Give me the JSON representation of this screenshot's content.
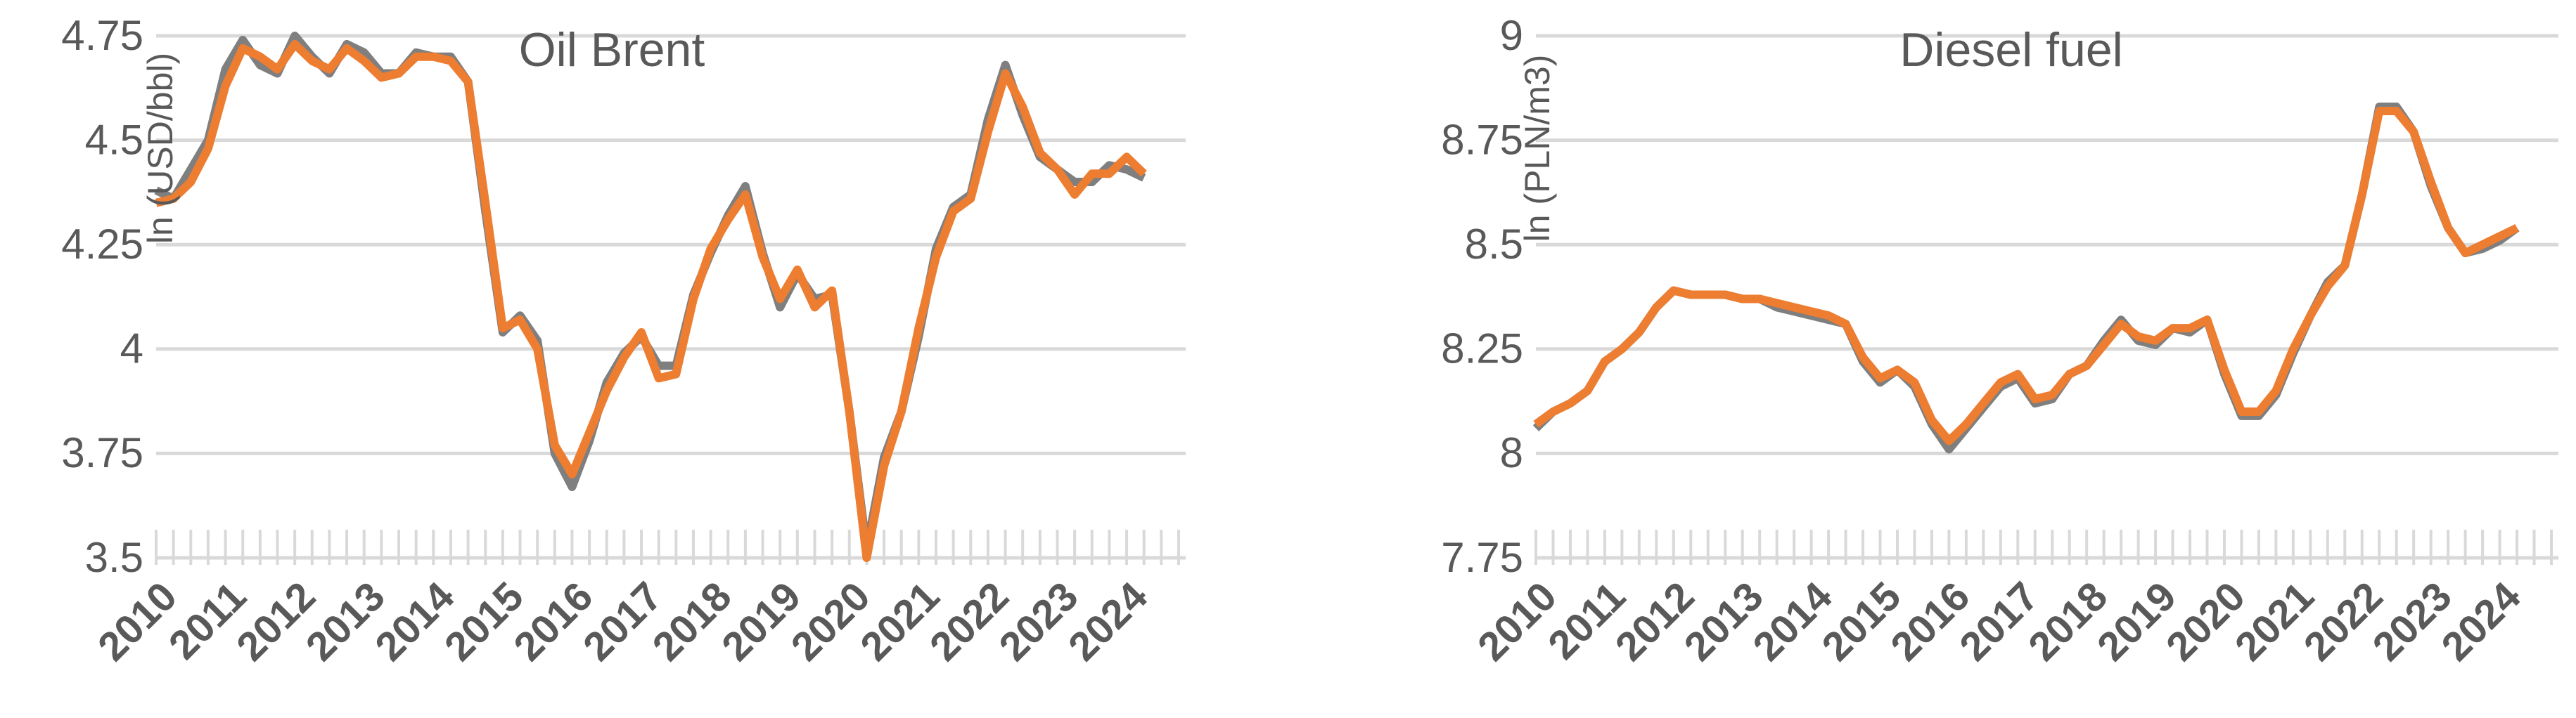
{
  "chart_data": [
    {
      "type": "line",
      "title": "Oil Brent",
      "y_label": "ln (USD/bbl)",
      "categories": [
        "2010",
        null,
        null,
        null,
        "2011",
        null,
        null,
        null,
        "2012",
        null,
        null,
        null,
        "2013",
        null,
        null,
        null,
        "2014",
        null,
        null,
        null,
        "2015",
        null,
        null,
        null,
        "2016",
        null,
        null,
        null,
        "2017",
        null,
        null,
        null,
        "2018",
        null,
        null,
        null,
        "2019",
        null,
        null,
        null,
        "2020",
        null,
        null,
        null,
        "2021",
        null,
        null,
        null,
        "2022",
        null,
        null,
        null,
        "2023",
        null,
        null,
        null,
        "2024",
        null,
        null,
        null
      ],
      "series": [
        {
          "color": "#7f7f7f",
          "values": [
            4.38,
            4.36,
            4.43,
            4.5,
            4.67,
            4.74,
            4.68,
            4.66,
            4.75,
            4.7,
            4.66,
            4.73,
            4.71,
            4.66,
            4.66,
            4.71,
            4.7,
            4.7,
            4.64,
            4.33,
            4.04,
            4.08,
            4.02,
            3.75,
            3.67,
            3.78,
            3.92,
            3.99,
            4.03,
            3.96,
            3.96,
            4.13,
            4.23,
            4.32,
            4.39,
            4.23,
            4.1,
            4.18,
            4.12,
            4.13,
            3.85,
            3.52,
            3.74,
            3.85,
            4.03,
            4.24,
            4.34,
            4.37,
            4.55,
            4.68,
            4.56,
            4.46,
            4.43,
            4.4,
            4.4,
            4.44,
            4.43,
            4.41,
            null,
            null
          ]
        },
        {
          "color": "#ed7d31",
          "values": [
            4.35,
            4.36,
            4.4,
            4.48,
            4.63,
            4.72,
            4.7,
            4.67,
            4.73,
            4.69,
            4.67,
            4.72,
            4.69,
            4.65,
            4.66,
            4.7,
            4.7,
            4.69,
            4.64,
            4.35,
            4.05,
            4.07,
            4.0,
            3.77,
            3.7,
            3.8,
            3.9,
            3.98,
            4.04,
            3.93,
            3.94,
            4.12,
            4.24,
            4.31,
            4.37,
            4.22,
            4.12,
            4.19,
            4.1,
            4.14,
            3.85,
            3.5,
            3.72,
            3.85,
            4.05,
            4.22,
            4.33,
            4.36,
            4.52,
            4.66,
            4.58,
            4.47,
            4.43,
            4.37,
            4.42,
            4.42,
            4.46,
            4.42,
            null,
            null
          ]
        }
      ],
      "ylim": [
        3.5,
        4.75
      ],
      "yticks": [
        3.5,
        3.75,
        4,
        4.25,
        4.5,
        4.75
      ],
      "grid": true
    },
    {
      "type": "line",
      "title": "Diesel fuel",
      "y_label": "ln (PLN/m3)",
      "categories": [
        "2010",
        null,
        null,
        null,
        "2011",
        null,
        null,
        null,
        "2012",
        null,
        null,
        null,
        "2013",
        null,
        null,
        null,
        "2014",
        null,
        null,
        null,
        "2015",
        null,
        null,
        null,
        "2016",
        null,
        null,
        null,
        "2017",
        null,
        null,
        null,
        "2018",
        null,
        null,
        null,
        "2019",
        null,
        null,
        null,
        "2020",
        null,
        null,
        null,
        "2021",
        null,
        null,
        null,
        "2022",
        null,
        null,
        null,
        "2023",
        null,
        null,
        null,
        "2024",
        null,
        null,
        null
      ],
      "series": [
        {
          "color": "#7f7f7f",
          "values": [
            8.06,
            8.1,
            8.12,
            8.15,
            8.22,
            8.25,
            8.29,
            8.35,
            8.39,
            8.38,
            8.38,
            8.38,
            8.37,
            8.37,
            8.35,
            8.34,
            8.33,
            8.32,
            8.31,
            8.22,
            8.17,
            8.2,
            8.16,
            8.07,
            8.01,
            8.06,
            8.11,
            8.16,
            8.18,
            8.12,
            8.13,
            8.19,
            8.21,
            8.27,
            8.32,
            8.27,
            8.26,
            8.3,
            8.29,
            8.32,
            8.19,
            8.09,
            8.09,
            8.14,
            8.24,
            8.33,
            8.41,
            8.45,
            8.62,
            8.83,
            8.83,
            8.77,
            8.64,
            8.54,
            8.48,
            8.49,
            8.51,
            8.54,
            null,
            null
          ]
        },
        {
          "color": "#ed7d31",
          "values": [
            8.07,
            8.1,
            8.12,
            8.15,
            8.22,
            8.25,
            8.29,
            8.35,
            8.39,
            8.38,
            8.38,
            8.38,
            8.37,
            8.37,
            8.36,
            8.35,
            8.34,
            8.33,
            8.31,
            8.23,
            8.18,
            8.2,
            8.17,
            8.08,
            8.03,
            8.07,
            8.12,
            8.17,
            8.19,
            8.13,
            8.14,
            8.19,
            8.21,
            8.26,
            8.31,
            8.28,
            8.27,
            8.3,
            8.3,
            8.32,
            8.2,
            8.1,
            8.1,
            8.15,
            8.25,
            8.33,
            8.4,
            8.45,
            8.62,
            8.82,
            8.82,
            8.77,
            8.65,
            8.54,
            8.48,
            8.5,
            8.52,
            8.54,
            null,
            null
          ]
        }
      ],
      "ylim": [
        7.75,
        9
      ],
      "yticks": [
        7.75,
        8,
        8.25,
        8.5,
        8.75,
        9
      ],
      "grid": true
    }
  ]
}
